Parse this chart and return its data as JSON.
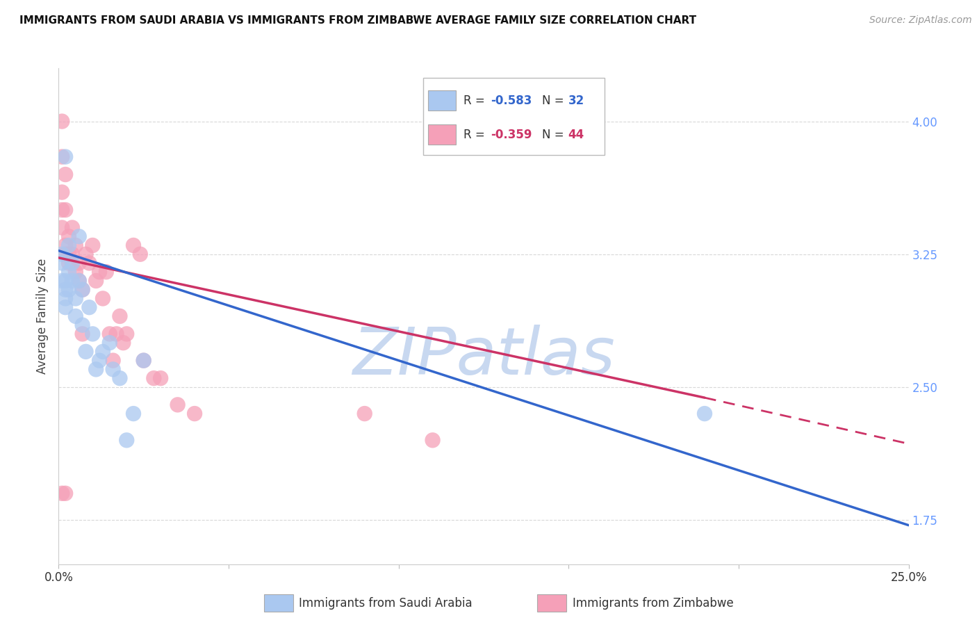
{
  "title": "IMMIGRANTS FROM SAUDI ARABIA VS IMMIGRANTS FROM ZIMBABWE AVERAGE FAMILY SIZE CORRELATION CHART",
  "source": "Source: ZipAtlas.com",
  "ylabel": "Average Family Size",
  "xlim": [
    0.0,
    0.25
  ],
  "ylim": [
    1.5,
    4.3
  ],
  "yticks": [
    1.75,
    2.5,
    3.25,
    4.0
  ],
  "xticks": [
    0.0,
    0.05,
    0.1,
    0.15,
    0.2,
    0.25
  ],
  "background_color": "#ffffff",
  "grid_color": "#d8d8d8",
  "right_axis_color": "#6699ff",
  "watermark": "ZIPatlas",
  "watermark_color": "#c8d8f0",
  "series1_color": "#aac8f0",
  "series1_label": "Immigrants from Saudi Arabia",
  "series1_R": "-0.583",
  "series1_N": "32",
  "series1_line_color": "#3366cc",
  "series2_color": "#f5a0b8",
  "series2_label": "Immigrants from Zimbabwe",
  "series2_R": "-0.359",
  "series2_N": "44",
  "series2_line_color": "#cc3366",
  "sa_x": [
    0.001,
    0.001,
    0.001,
    0.002,
    0.002,
    0.002,
    0.002,
    0.003,
    0.003,
    0.003,
    0.004,
    0.004,
    0.005,
    0.005,
    0.006,
    0.006,
    0.007,
    0.007,
    0.008,
    0.009,
    0.01,
    0.011,
    0.012,
    0.013,
    0.015,
    0.016,
    0.018,
    0.02,
    0.022,
    0.025,
    0.19,
    0.002
  ],
  "sa_y": [
    3.25,
    3.2,
    3.1,
    3.1,
    3.05,
    3.0,
    2.95,
    3.3,
    3.15,
    3.05,
    3.2,
    3.1,
    3.0,
    2.9,
    3.35,
    3.1,
    3.05,
    2.85,
    2.7,
    2.95,
    2.8,
    2.6,
    2.65,
    2.7,
    2.75,
    2.6,
    2.55,
    2.2,
    2.35,
    2.65,
    2.35,
    3.8
  ],
  "zim_x": [
    0.001,
    0.001,
    0.001,
    0.001,
    0.001,
    0.002,
    0.002,
    0.002,
    0.002,
    0.003,
    0.003,
    0.003,
    0.004,
    0.004,
    0.005,
    0.005,
    0.006,
    0.006,
    0.007,
    0.007,
    0.008,
    0.009,
    0.01,
    0.011,
    0.012,
    0.013,
    0.014,
    0.015,
    0.016,
    0.017,
    0.018,
    0.019,
    0.02,
    0.022,
    0.024,
    0.025,
    0.028,
    0.03,
    0.035,
    0.04,
    0.09,
    0.11,
    0.001,
    0.002
  ],
  "zim_y": [
    4.0,
    3.8,
    3.6,
    3.5,
    3.4,
    3.7,
    3.5,
    3.3,
    3.25,
    3.35,
    3.25,
    3.2,
    3.4,
    3.25,
    3.3,
    3.15,
    3.2,
    3.1,
    3.05,
    2.8,
    3.25,
    3.2,
    3.3,
    3.1,
    3.15,
    3.0,
    3.15,
    2.8,
    2.65,
    2.8,
    2.9,
    2.75,
    2.8,
    3.3,
    3.25,
    2.65,
    2.55,
    2.55,
    2.4,
    2.35,
    2.35,
    2.2,
    1.9,
    1.9
  ],
  "sa_line": {
    "x0": 0.0,
    "x1": 0.25,
    "y0": 3.27,
    "y1": 1.72
  },
  "zim_line_solid": {
    "x0": 0.0,
    "x1": 0.19,
    "y0": 3.23,
    "y1": 2.44
  },
  "zim_line_dash": {
    "x0": 0.19,
    "x1": 0.25,
    "y0": 2.44,
    "y1": 2.18
  }
}
